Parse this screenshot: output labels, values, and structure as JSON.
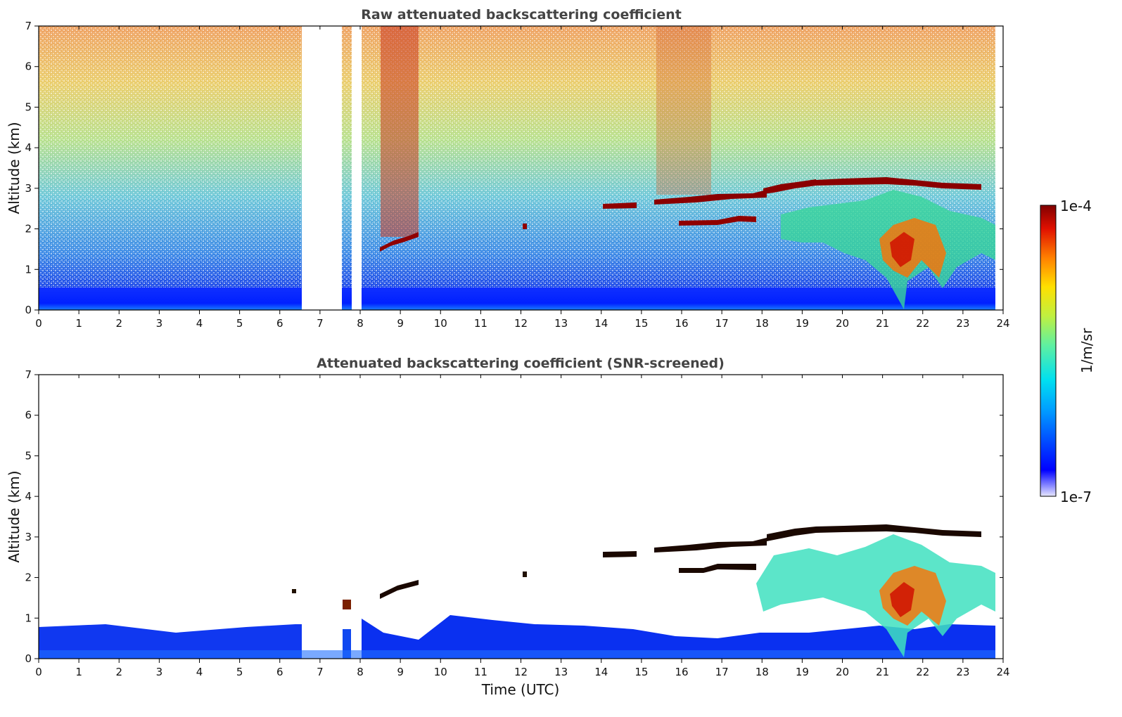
{
  "chart_data": [
    {
      "type": "heatmap",
      "title": "Raw attenuated backscattering coefficient",
      "xlabel": "",
      "ylabel": "Altitude (km)",
      "xlim": [
        0,
        24
      ],
      "ylim": [
        0,
        7
      ],
      "xticks": [
        "0",
        "1",
        "2",
        "3",
        "4",
        "5",
        "6",
        "7",
        "8",
        "9",
        "10",
        "11",
        "12",
        "13",
        "14",
        "15",
        "16",
        "17",
        "18",
        "19",
        "20",
        "21",
        "22",
        "23",
        "24"
      ],
      "yticks": [
        "0",
        "1",
        "2",
        "3",
        "4",
        "5",
        "6",
        "7"
      ],
      "data_gaps_hours": [
        [
          6.55,
          7.55
        ],
        [
          7.8,
          8.05
        ]
      ],
      "cloud_layers": [
        {
          "start": 8.5,
          "end": 9.45,
          "altitude_km_start": 1.5,
          "altitude_km_end": 1.9
        },
        {
          "start": 12.0,
          "end": 12.1,
          "altitude_km_start": 2.05,
          "altitude_km_end": 2.05
        },
        {
          "start": 14.0,
          "end": 15.0,
          "altitude_km_start": 2.55,
          "altitude_km_end": 2.6
        },
        {
          "start": 15.3,
          "end": 17.8,
          "altitude_km_start": 2.65,
          "altitude_km_end": 2.8
        },
        {
          "start": 17.8,
          "end": 19.5,
          "altitude_km_start": 2.85,
          "altitude_km_end": 3.2
        },
        {
          "start": 19.5,
          "end": 23.8,
          "altitude_km_start": 3.15,
          "altitude_km_end": 3.05
        }
      ],
      "boundary_layer_top_km": 0.55
    },
    {
      "type": "heatmap",
      "title": "Attenuated backscattering coefficient (SNR-screened)",
      "xlabel": "Time (UTC)",
      "ylabel": "Altitude (km)",
      "xlim": [
        0,
        24
      ],
      "ylim": [
        0,
        7
      ],
      "xticks": [
        "0",
        "1",
        "2",
        "3",
        "4",
        "5",
        "6",
        "7",
        "8",
        "9",
        "10",
        "11",
        "12",
        "13",
        "14",
        "15",
        "16",
        "17",
        "18",
        "19",
        "20",
        "21",
        "22",
        "23",
        "24"
      ],
      "yticks": [
        "0",
        "1",
        "2",
        "3",
        "4",
        "5",
        "6",
        "7"
      ],
      "data_gaps_hours": [
        [
          6.55,
          7.55
        ],
        [
          7.8,
          8.05
        ]
      ],
      "boundary_layer_top_km": 0.7
    }
  ],
  "colorbar": {
    "label": "1/m/sr",
    "max_label": "1e-4",
    "min_label": "1e-7",
    "colormap": "jet"
  },
  "colors": {
    "title": "#444444",
    "axis": "#000000",
    "low": "#0000ff",
    "high": "#800000"
  }
}
